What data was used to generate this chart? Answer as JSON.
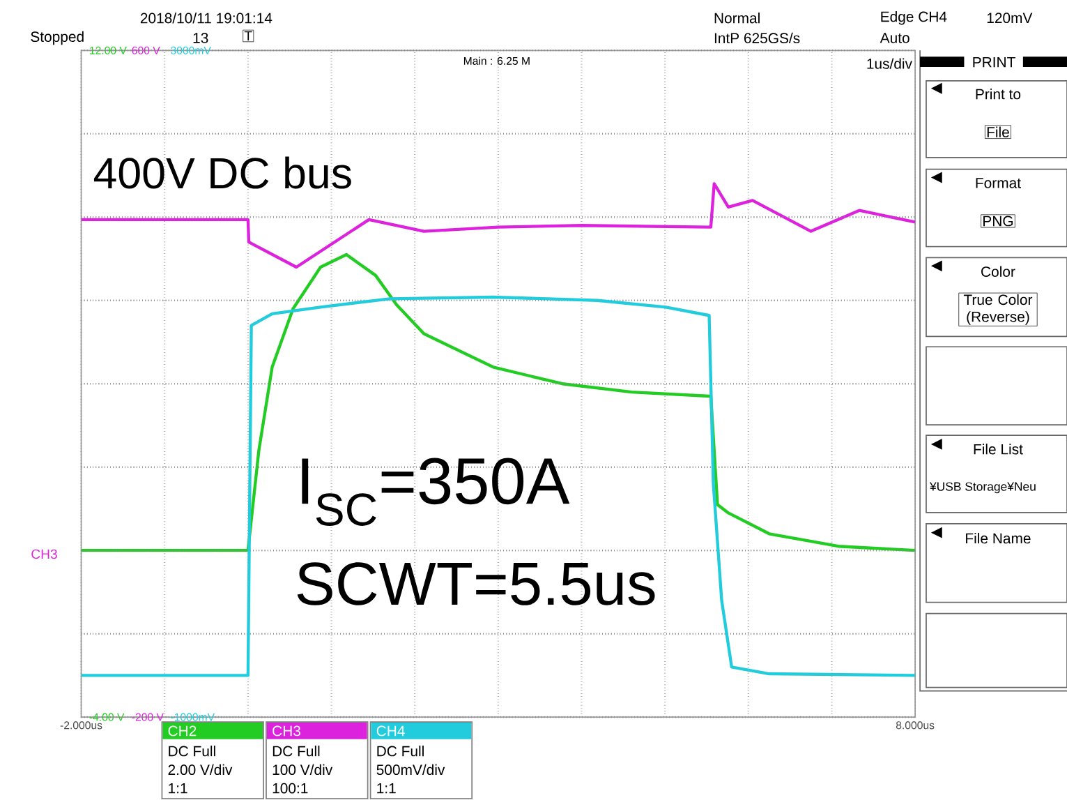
{
  "chart_data": {
    "type": "line",
    "xlim": [
      -2,
      8
    ],
    "xticks": [
      {
        "value": -2,
        "label": "-2.000us"
      },
      {
        "value": -1,
        "label": null
      },
      {
        "value": 0,
        "label": null
      },
      {
        "value": 1,
        "label": null
      },
      {
        "value": 2,
        "label": null
      },
      {
        "value": 3,
        "label": null
      },
      {
        "value": 4,
        "label": null
      },
      {
        "value": 5,
        "label": null
      },
      {
        "value": 6,
        "label": null
      },
      {
        "value": 7,
        "label": null
      },
      {
        "value": 8,
        "label": "8.000us"
      }
    ],
    "ylim": [
      -4,
      12
    ],
    "yticks": [
      {
        "value": -4,
        "label": "-4.00 V"
      },
      {
        "value": -2,
        "label": null
      },
      {
        "value": 0,
        "label": null
      },
      {
        "value": 2,
        "label": null
      },
      {
        "value": 4,
        "label": null
      },
      {
        "value": 6,
        "label": null
      },
      {
        "value": 8,
        "label": null
      },
      {
        "value": 10,
        "label": null
      },
      {
        "value": 12,
        "label": "12.00 V"
      }
    ],
    "y2lim": [
      -200,
      600
    ],
    "y2ticks": [
      {
        "value": -200,
        "label": "-200 V"
      },
      {
        "value": -100,
        "label": null
      },
      {
        "value": 0,
        "label": null
      },
      {
        "value": 100,
        "label": null
      },
      {
        "value": 200,
        "label": null
      },
      {
        "value": 300,
        "label": null
      },
      {
        "value": 400,
        "label": null
      },
      {
        "value": 500,
        "label": null
      },
      {
        "value": 600,
        "label": "600 V"
      }
    ],
    "y3lim": [
      -1000,
      3000
    ],
    "y3ticks": [
      {
        "value": -1000,
        "label": "-1000mV"
      },
      {
        "value": -500,
        "label": null
      },
      {
        "value": 0,
        "label": null
      },
      {
        "value": 500,
        "label": null
      },
      {
        "value": 1000,
        "label": null
      },
      {
        "value": 1500,
        "label": null
      },
      {
        "value": 2000,
        "label": null
      },
      {
        "value": 2500,
        "label": null
      },
      {
        "value": 3000,
        "label": "3000mV"
      }
    ],
    "grid": true,
    "legend": "bottom",
    "series": [
      {
        "name": "CH2",
        "color": "#22cc22",
        "x": [
          -2,
          -1,
          0,
          0.13,
          0.29,
          0.54,
          0.87,
          1.18,
          1.53,
          1.78,
          2.11,
          2.94,
          3.77,
          4.6,
          5.55,
          5.63,
          5.76,
          6.25,
          7.08,
          8
        ],
        "values": [
          0,
          0,
          0,
          2.4,
          4.4,
          5.8,
          6.8,
          7.1,
          6.6,
          5.9,
          5.2,
          4.4,
          4.0,
          3.8,
          3.7,
          1.1,
          0.9,
          0.4,
          0.1,
          0
        ]
      },
      {
        "name": "CH3",
        "color": "#dd22dd",
        "axis": "y2",
        "x": [
          -2,
          -1,
          0,
          0.01,
          0.58,
          1.45,
          2.11,
          3,
          4,
          5.55,
          5.59,
          5.76,
          6.05,
          6.75,
          7.33,
          8
        ],
        "values": [
          397,
          397,
          397,
          370,
          340,
          397,
          383,
          388,
          390,
          388,
          440,
          412,
          420,
          383,
          408,
          394
        ]
      },
      {
        "name": "CH4",
        "color": "#22ccdd",
        "axis": "y3",
        "x": [
          -2,
          -1,
          0,
          0.04,
          0.29,
          0.87,
          1.7,
          2.94,
          4.19,
          5.01,
          5.53,
          5.58,
          5.68,
          5.8,
          6.25,
          8
        ],
        "values": [
          -750,
          -750,
          -750,
          1350,
          1420,
          1460,
          1510,
          1520,
          1500,
          1460,
          1410,
          400,
          -300,
          -700,
          -740,
          -750
        ]
      }
    ],
    "annotations": [
      "2018/10/11 19:01:14",
      "Stopped",
      "13",
      "T",
      "Normal",
      "IntP  625GS/s",
      "Edge CH4",
      "120mV",
      "Auto",
      "Main : 6.25 M",
      "1us/div",
      "400V DC bus",
      "I$_{SC}$=350A",
      "SCWT=5.5us",
      "CH3",
      "DC Full",
      "2.00 V/div",
      "1:1",
      "DC Full",
      "100 V/div",
      "100:1",
      "DC Full",
      "500mV/div",
      "1:1",
      "PRINT",
      "Print to",
      "File",
      "Format",
      "PNG",
      "Color",
      "True Color (Reverse)",
      "File List",
      "¥USB Storage¥Neu",
      "File Name"
    ]
  }
}
